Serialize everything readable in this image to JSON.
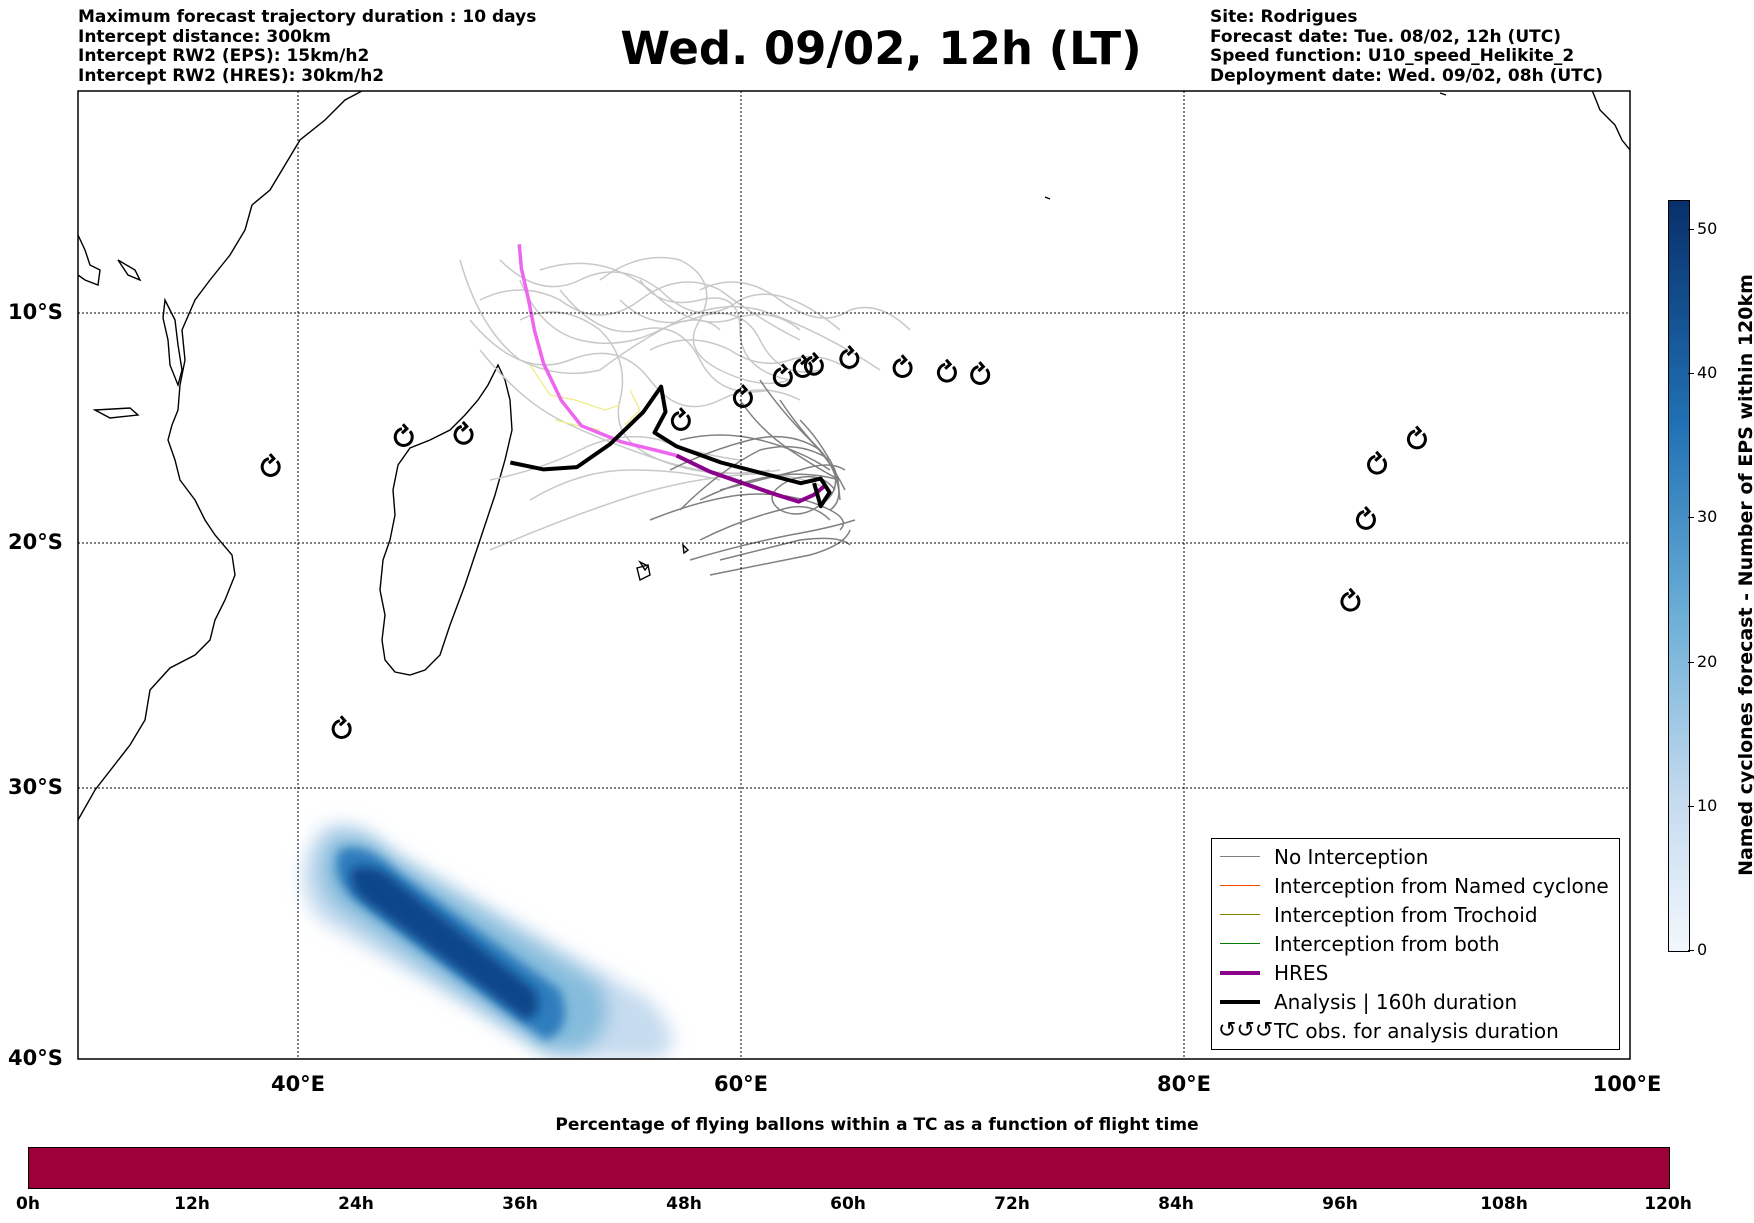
{
  "header_left": [
    "Maximum forecast trajectory duration : 10 days",
    "Intercept distance: 300km",
    "Intercept RW2 (EPS):  15km/h2",
    "Intercept RW2 (HRES): 30km/h2"
  ],
  "header_right": [
    "Site: Rodrigues",
    "Forecast date: Tue. 08/02, 12h (UTC)",
    "Speed function: U10_speed_Helikite_2",
    "Deployment date: Wed. 09/02, 08h (UTC)"
  ],
  "title": "Wed. 09/02, 12h (LT)",
  "map": {
    "lon_range": [
      30,
      100
    ],
    "lat_range": [
      -40,
      0
    ],
    "lon_ticks": [
      {
        "value": 40,
        "label": "40°E"
      },
      {
        "value": 60,
        "label": "60°E"
      },
      {
        "value": 80,
        "label": "80°E"
      },
      {
        "value": 100,
        "label": "100°E"
      }
    ],
    "lat_ticks": [
      {
        "value": -10,
        "label": "10°S"
      },
      {
        "value": -20,
        "label": "20°S"
      },
      {
        "value": -30,
        "label": "30°S"
      },
      {
        "value": -40,
        "label": "40°S"
      }
    ],
    "grid": true,
    "colors": {
      "no_interception": "#808080",
      "named_cyclone": "#ff4500",
      "trochoid": "#808000",
      "both": "#008000",
      "hres": "#8b008b",
      "hres_light": "#ee66ee",
      "analysis": "#000000",
      "eps_light": "#c8c8c8",
      "yellow": "#eeee88"
    },
    "tc_obs": [
      {
        "lon": 38.7,
        "lat": -16.7
      },
      {
        "lon": 44.7,
        "lat": -15.4
      },
      {
        "lon": 47.4,
        "lat": -15.3
      },
      {
        "lon": 57.2,
        "lat": -14.7
      },
      {
        "lon": 60.0,
        "lat": -13.7
      },
      {
        "lon": 61.8,
        "lat": -12.8
      },
      {
        "lon": 62.7,
        "lat": -12.4
      },
      {
        "lon": 63.2,
        "lat": -12.3
      },
      {
        "lon": 64.8,
        "lat": -12.0
      },
      {
        "lon": 67.2,
        "lat": -12.4
      },
      {
        "lon": 69.2,
        "lat": -12.6
      },
      {
        "lon": 70.7,
        "lat": -12.7
      },
      {
        "lon": 41.9,
        "lat": -27.6
      },
      {
        "lon": 87.4,
        "lat": -22.4
      },
      {
        "lon": 88.1,
        "lat": -19.0
      },
      {
        "lon": 88.6,
        "lat": -16.6
      },
      {
        "lon": 90.4,
        "lat": -15.5
      }
    ],
    "analysis_track": [
      [
        49.5,
        -16.5
      ],
      [
        51,
        -16.8
      ],
      [
        52.5,
        -16.7
      ],
      [
        54,
        -15.7
      ],
      [
        55.5,
        -14.3
      ],
      [
        56.3,
        -13.2
      ],
      [
        56.5,
        -14.3
      ],
      [
        56.0,
        -15.2
      ],
      [
        57,
        -15.8
      ],
      [
        59,
        -16.5
      ],
      [
        61,
        -17.0
      ],
      [
        62.6,
        -17.4
      ],
      [
        63.5,
        -17.2
      ],
      [
        63.9,
        -17.8
      ],
      [
        63.5,
        -18.4
      ],
      [
        63.2,
        -17.4
      ]
    ],
    "hres_track": [
      [
        57,
        -16.2
      ],
      [
        58.5,
        -16.9
      ],
      [
        60,
        -17.4
      ],
      [
        61.5,
        -17.9
      ],
      [
        62.5,
        -18.2
      ],
      [
        63.2,
        -17.9
      ],
      [
        63.7,
        -17.5
      ]
    ],
    "hres_light_track": [
      [
        49.9,
        -6.9
      ],
      [
        50.0,
        -8.0
      ],
      [
        50.3,
        -9.3
      ],
      [
        50.6,
        -10.8
      ],
      [
        51.0,
        -12.2
      ],
      [
        51.8,
        -13.8
      ],
      [
        52.7,
        -14.9
      ],
      [
        54.5,
        -15.6
      ],
      [
        56.2,
        -16.0
      ],
      [
        57.0,
        -16.2
      ]
    ],
    "eps_heat": {
      "label": "Named cyclones forecast - Number of EPS within 120km",
      "ticks": [
        0,
        10,
        20,
        30,
        40,
        50
      ],
      "max": 52
    }
  },
  "legend": {
    "no_interception": "No Interception",
    "named_cyclone": "Interception from Named cyclone",
    "trochoid": "Interception from Trochoid",
    "both": "Interception from both",
    "hres": "HRES",
    "analysis": "Analysis | 160h duration",
    "tc_obs": "TC obs. for analysis duration",
    "tc_glyph": "↺↺↺"
  },
  "bottom_bar": {
    "title": "Percentage of flying ballons within a TC as a function of flight time",
    "color": "#9e003a",
    "ticks": [
      "0h",
      "12h",
      "24h",
      "36h",
      "48h",
      "60h",
      "72h",
      "84h",
      "96h",
      "108h",
      "120h"
    ]
  }
}
